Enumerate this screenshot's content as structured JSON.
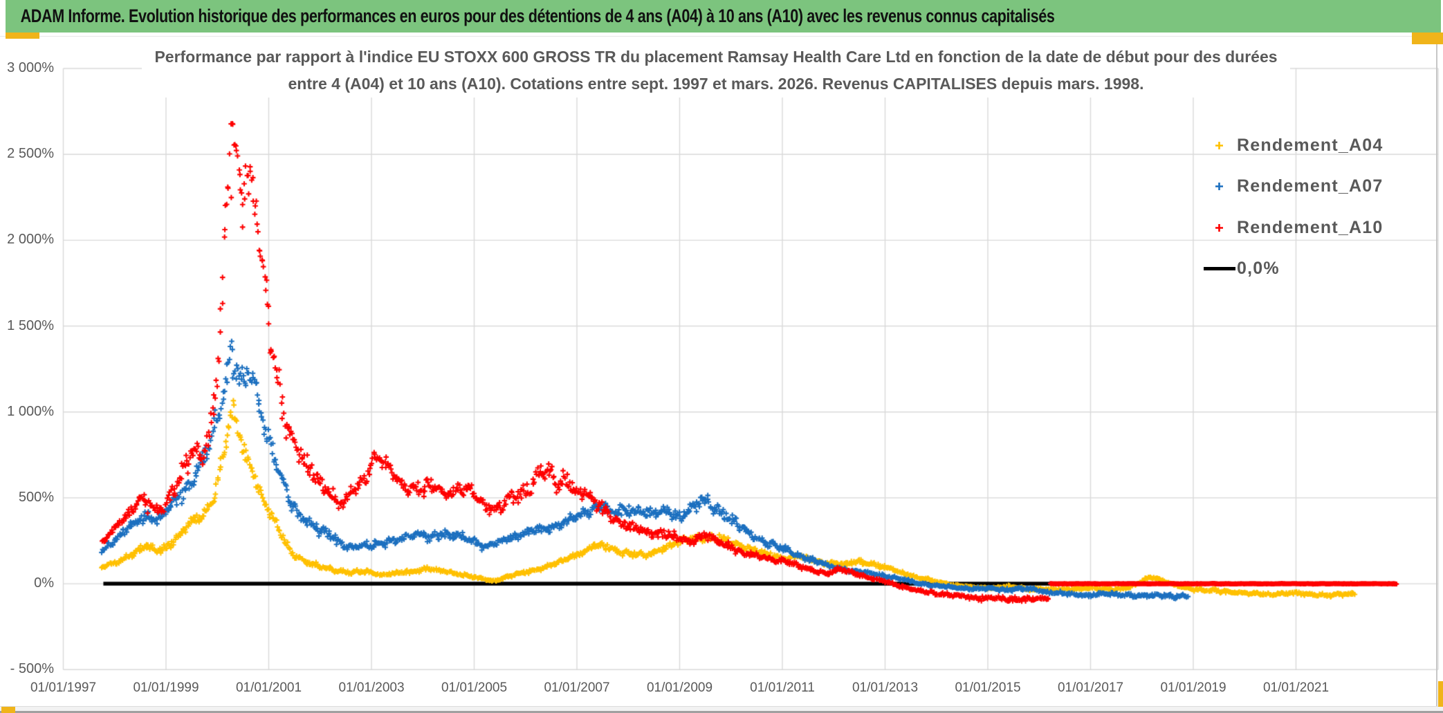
{
  "header": {
    "title": "ADAM Informe. Evolution historique des performances en euros pour des détentions de 4 ans (A04) à 10 ans (A10) avec les revenus connus capitalisés"
  },
  "colors": {
    "header_bg": "#7CC47E",
    "accent_gold": "#F0B41A",
    "grid": "#D9D9D9",
    "axis_text": "#595959",
    "series_a04": "#FFC000",
    "series_a07": "#1B6FBF",
    "series_a10": "#FE0000",
    "zero_line": "#000000"
  },
  "chart_data": {
    "type": "scatter",
    "title": {
      "line1": "Performance par rapport à l'indice EU STOXX 600 GROSS TR  du placement Ramsay Health Care Ltd en fonction de la date de début pour des durées",
      "line2": "entre 4 (A04) et 10 ans (A10). Cotations entre sept. 1997 et mars. 2026. Revenus CAPITALISES depuis mars. 1998."
    },
    "x_axis": {
      "tick_labels": [
        "01/01/1997",
        "01/01/1999",
        "01/01/2001",
        "01/01/2003",
        "01/01/2005",
        "01/01/2007",
        "01/01/2009",
        "01/01/2011",
        "01/01/2013",
        "01/01/2015",
        "01/01/2017",
        "01/01/2019",
        "01/01/2021"
      ],
      "min_year": 1997,
      "max_year": 2023.8,
      "years_per_tick": 2
    },
    "y_axis": {
      "tick_labels": [
        "3 000%",
        "2 500%",
        "2 000%",
        "1 500%",
        "1 000%",
        "500%",
        "0%",
        "- 500%"
      ],
      "max": 3000,
      "min": -500,
      "step": 500,
      "unit": "%"
    },
    "legend": [
      {
        "label": "Rendement_A04",
        "color": "#FFC000",
        "marker": "plus"
      },
      {
        "label": "Rendement_A07",
        "color": "#1B6FBF",
        "marker": "plus"
      },
      {
        "label": "Rendement_A10",
        "color": "#FE0000",
        "marker": "plus"
      },
      {
        "label": "0,0%",
        "color": "#000000",
        "marker": "line"
      }
    ],
    "zero_line": {
      "label": "0,0%",
      "value": 0,
      "x_start": 1997.78,
      "x_end": 2022.95,
      "color": "#000000"
    },
    "grid": true,
    "series": [
      {
        "name": "Rendement_A04",
        "color": "#FFC000",
        "step": 0.018,
        "noise_base": 4,
        "noise_scale": 0.05,
        "phase": 0.7,
        "keypoints": [
          [
            1997.75,
            95
          ],
          [
            1998.0,
            120
          ],
          [
            1998.3,
            165
          ],
          [
            1998.6,
            220
          ],
          [
            1998.85,
            185
          ],
          [
            1999.1,
            235
          ],
          [
            1999.4,
            330
          ],
          [
            1999.7,
            400
          ],
          [
            1999.9,
            480
          ],
          [
            2000.05,
            650
          ],
          [
            2000.2,
            870
          ],
          [
            2000.3,
            1000
          ],
          [
            2000.4,
            870
          ],
          [
            2000.55,
            760
          ],
          [
            2000.7,
            640
          ],
          [
            2000.9,
            490
          ],
          [
            2001.1,
            360
          ],
          [
            2001.3,
            250
          ],
          [
            2001.5,
            165
          ],
          [
            2001.75,
            120
          ],
          [
            2002.0,
            100
          ],
          [
            2002.3,
            80
          ],
          [
            2002.6,
            62
          ],
          [
            2002.9,
            72
          ],
          [
            2003.2,
            52
          ],
          [
            2003.5,
            62
          ],
          [
            2003.8,
            75
          ],
          [
            2004.1,
            88
          ],
          [
            2004.4,
            72
          ],
          [
            2004.7,
            62
          ],
          [
            2005.0,
            38
          ],
          [
            2005.35,
            15
          ],
          [
            2005.65,
            45
          ],
          [
            2005.95,
            62
          ],
          [
            2006.25,
            85
          ],
          [
            2006.55,
            115
          ],
          [
            2006.85,
            150
          ],
          [
            2007.1,
            185
          ],
          [
            2007.35,
            225
          ],
          [
            2007.6,
            210
          ],
          [
            2007.85,
            185
          ],
          [
            2008.1,
            172
          ],
          [
            2008.35,
            162
          ],
          [
            2008.6,
            200
          ],
          [
            2008.9,
            232
          ],
          [
            2009.2,
            262
          ],
          [
            2009.5,
            278
          ],
          [
            2009.8,
            258
          ],
          [
            2010.1,
            232
          ],
          [
            2010.4,
            200
          ],
          [
            2010.7,
            172
          ],
          [
            2011.0,
            152
          ],
          [
            2011.3,
            162
          ],
          [
            2011.6,
            132
          ],
          [
            2011.9,
            118
          ],
          [
            2012.2,
            112
          ],
          [
            2012.5,
            132
          ],
          [
            2012.75,
            115
          ],
          [
            2013.0,
            92
          ],
          [
            2013.3,
            68
          ],
          [
            2013.6,
            38
          ],
          [
            2013.9,
            18
          ],
          [
            2014.2,
            0
          ],
          [
            2014.5,
            -15
          ],
          [
            2014.8,
            -25
          ],
          [
            2015.1,
            -22
          ],
          [
            2015.4,
            -18
          ],
          [
            2015.7,
            -28
          ],
          [
            2016.0,
            -32
          ],
          [
            2016.3,
            -36
          ],
          [
            2016.6,
            -30
          ],
          [
            2016.9,
            -26
          ],
          [
            2017.2,
            -30
          ],
          [
            2017.5,
            -32
          ],
          [
            2017.8,
            -18
          ],
          [
            2018.0,
            15
          ],
          [
            2018.15,
            40
          ],
          [
            2018.3,
            32
          ],
          [
            2018.5,
            5
          ],
          [
            2018.75,
            -18
          ],
          [
            2019.0,
            -30
          ],
          [
            2019.3,
            -38
          ],
          [
            2019.6,
            -45
          ],
          [
            2019.9,
            -52
          ],
          [
            2020.2,
            -58
          ],
          [
            2020.5,
            -62
          ],
          [
            2020.8,
            -55
          ],
          [
            2021.1,
            -58
          ],
          [
            2021.4,
            -63
          ],
          [
            2021.7,
            -66
          ],
          [
            2021.95,
            -60
          ],
          [
            2022.15,
            -55
          ]
        ]
      },
      {
        "name": "Rendement_A07",
        "color": "#1B6FBF",
        "step": 0.018,
        "noise_base": 4.5,
        "noise_scale": 0.05,
        "phase": 2.9,
        "keypoints": [
          [
            1997.75,
            185
          ],
          [
            1998.0,
            255
          ],
          [
            1998.3,
            330
          ],
          [
            1998.6,
            400
          ],
          [
            1998.85,
            370
          ],
          [
            1999.1,
            440
          ],
          [
            1999.4,
            560
          ],
          [
            1999.65,
            680
          ],
          [
            1999.85,
            800
          ],
          [
            2000.0,
            950
          ],
          [
            2000.15,
            1150
          ],
          [
            2000.25,
            1370
          ],
          [
            2000.35,
            1280
          ],
          [
            2000.5,
            1150
          ],
          [
            2000.65,
            1220
          ],
          [
            2000.8,
            1050
          ],
          [
            2000.95,
            900
          ],
          [
            2001.1,
            760
          ],
          [
            2001.25,
            640
          ],
          [
            2001.4,
            470
          ],
          [
            2001.6,
            390
          ],
          [
            2001.8,
            360
          ],
          [
            2002.0,
            320
          ],
          [
            2002.25,
            265
          ],
          [
            2002.5,
            210
          ],
          [
            2002.75,
            225
          ],
          [
            2003.0,
            218
          ],
          [
            2003.3,
            245
          ],
          [
            2003.6,
            268
          ],
          [
            2003.9,
            288
          ],
          [
            2004.15,
            272
          ],
          [
            2004.4,
            292
          ],
          [
            2004.7,
            278
          ],
          [
            2005.0,
            252
          ],
          [
            2005.25,
            212
          ],
          [
            2005.5,
            242
          ],
          [
            2005.8,
            282
          ],
          [
            2006.1,
            302
          ],
          [
            2006.4,
            322
          ],
          [
            2006.7,
            352
          ],
          [
            2007.0,
            385
          ],
          [
            2007.3,
            432
          ],
          [
            2007.5,
            468
          ],
          [
            2007.7,
            408
          ],
          [
            2007.95,
            428
          ],
          [
            2008.2,
            442
          ],
          [
            2008.45,
            402
          ],
          [
            2008.7,
            422
          ],
          [
            2008.95,
            392
          ],
          [
            2009.2,
            432
          ],
          [
            2009.45,
            478
          ],
          [
            2009.6,
            462
          ],
          [
            2009.8,
            422
          ],
          [
            2010.0,
            372
          ],
          [
            2010.3,
            302
          ],
          [
            2010.6,
            252
          ],
          [
            2010.9,
            212
          ],
          [
            2011.2,
            182
          ],
          [
            2011.5,
            148
          ],
          [
            2011.8,
            112
          ],
          [
            2012.1,
            88
          ],
          [
            2012.4,
            72
          ],
          [
            2012.7,
            62
          ],
          [
            2013.0,
            45
          ],
          [
            2013.3,
            28
          ],
          [
            2013.6,
            8
          ],
          [
            2013.9,
            -8
          ],
          [
            2014.2,
            -18
          ],
          [
            2014.5,
            -25
          ],
          [
            2014.8,
            -30
          ],
          [
            2015.1,
            -28
          ],
          [
            2015.4,
            -32
          ],
          [
            2015.7,
            -30
          ],
          [
            2016.0,
            -40
          ],
          [
            2016.3,
            -52
          ],
          [
            2016.6,
            -62
          ],
          [
            2016.9,
            -66
          ],
          [
            2017.2,
            -58
          ],
          [
            2017.5,
            -62
          ],
          [
            2017.8,
            -66
          ],
          [
            2018.1,
            -70
          ],
          [
            2018.4,
            -68
          ],
          [
            2018.65,
            -72
          ],
          [
            2018.9,
            -75
          ]
        ]
      },
      {
        "name": "Rendement_A10",
        "color": "#FE0000",
        "step": 0.018,
        "noise_base": 5,
        "noise_scale": 0.055,
        "phase": 5.3,
        "keypoints": [
          [
            1997.75,
            235
          ],
          [
            1998.0,
            320
          ],
          [
            1998.3,
            420
          ],
          [
            1998.55,
            480
          ],
          [
            1998.8,
            430
          ],
          [
            1999.0,
            470
          ],
          [
            1999.2,
            560
          ],
          [
            1999.4,
            680
          ],
          [
            1999.55,
            790
          ],
          [
            1999.7,
            730
          ],
          [
            1999.85,
            850
          ],
          [
            2000.0,
            1200
          ],
          [
            2000.1,
            1700
          ],
          [
            2000.2,
            2300
          ],
          [
            2000.3,
            2650
          ],
          [
            2000.4,
            2450
          ],
          [
            2000.5,
            2250
          ],
          [
            2000.6,
            2400
          ],
          [
            2000.7,
            2250
          ],
          [
            2000.8,
            2050
          ],
          [
            2000.9,
            1800
          ],
          [
            2001.0,
            1530
          ],
          [
            2001.1,
            1320
          ],
          [
            2001.2,
            1150
          ],
          [
            2001.35,
            950
          ],
          [
            2001.5,
            820
          ],
          [
            2001.7,
            700
          ],
          [
            2001.9,
            630
          ],
          [
            2002.1,
            560
          ],
          [
            2002.3,
            490
          ],
          [
            2002.45,
            460
          ],
          [
            2002.6,
            530
          ],
          [
            2002.8,
            610
          ],
          [
            2003.0,
            700
          ],
          [
            2003.15,
            750
          ],
          [
            2003.3,
            660
          ],
          [
            2003.5,
            600
          ],
          [
            2003.7,
            565
          ],
          [
            2003.95,
            545
          ],
          [
            2004.2,
            560
          ],
          [
            2004.45,
            535
          ],
          [
            2004.7,
            555
          ],
          [
            2004.95,
            535
          ],
          [
            2005.2,
            455
          ],
          [
            2005.4,
            430
          ],
          [
            2005.6,
            475
          ],
          [
            2005.85,
            505
          ],
          [
            2006.1,
            560
          ],
          [
            2006.3,
            690
          ],
          [
            2006.45,
            640
          ],
          [
            2006.6,
            585
          ],
          [
            2006.8,
            600
          ],
          [
            2007.0,
            545
          ],
          [
            2007.2,
            515
          ],
          [
            2007.45,
            445
          ],
          [
            2007.7,
            385
          ],
          [
            2007.95,
            345
          ],
          [
            2008.2,
            315
          ],
          [
            2008.45,
            295
          ],
          [
            2008.7,
            290
          ],
          [
            2008.95,
            262
          ],
          [
            2009.2,
            248
          ],
          [
            2009.45,
            278
          ],
          [
            2009.65,
            258
          ],
          [
            2009.9,
            228
          ],
          [
            2010.15,
            192
          ],
          [
            2010.4,
            165
          ],
          [
            2010.65,
            152
          ],
          [
            2010.9,
            142
          ],
          [
            2011.15,
            118
          ],
          [
            2011.4,
            95
          ],
          [
            2011.65,
            75
          ],
          [
            2011.9,
            58
          ],
          [
            2012.15,
            85
          ],
          [
            2012.35,
            68
          ],
          [
            2012.6,
            42
          ],
          [
            2012.85,
            22
          ],
          [
            2013.1,
            5
          ],
          [
            2013.35,
            -18
          ],
          [
            2013.6,
            -38
          ],
          [
            2013.9,
            -52
          ],
          [
            2014.2,
            -65
          ],
          [
            2014.5,
            -75
          ],
          [
            2014.8,
            -82
          ],
          [
            2015.1,
            -86
          ],
          [
            2015.4,
            -88
          ],
          [
            2015.7,
            -90
          ],
          [
            2015.95,
            -88
          ],
          [
            2016.2,
            -86
          ]
        ]
      },
      {
        "name": "Rendement_A10",
        "color": "#FE0000",
        "step": 0.006,
        "noise_base": 1.1,
        "noise_scale": 0,
        "phase": 1.3,
        "arm": 3.5,
        "lw": 2.5,
        "keypoints": [
          [
            2016.22,
            0
          ],
          [
            2022.95,
            0
          ]
        ]
      }
    ]
  }
}
